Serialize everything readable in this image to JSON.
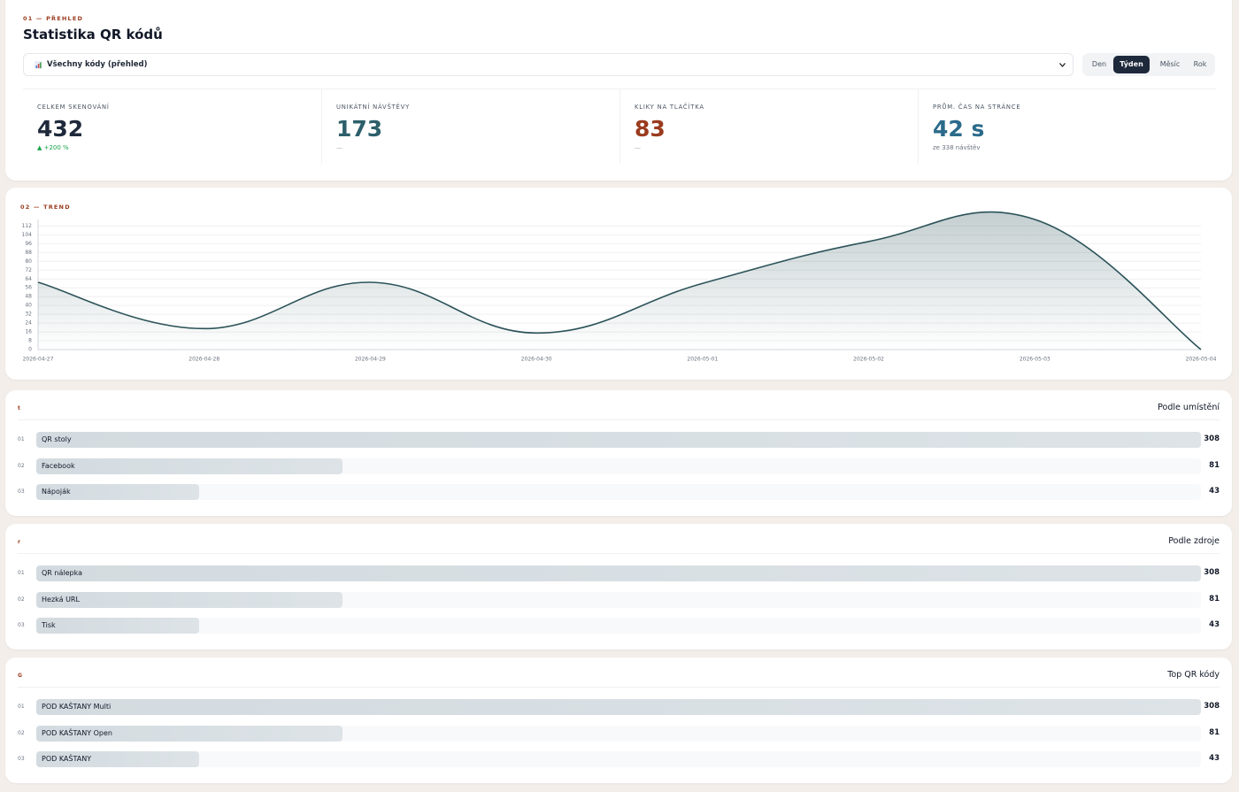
{
  "header": {
    "eyebrow": "01 — PŘEHLED",
    "title": "Statistika QR kódů",
    "select": "Všechny kódy (přehled)",
    "periods": [
      "Den",
      "Týden",
      "Měsíc",
      "Rok"
    ],
    "active_period": 1
  },
  "stats": [
    {
      "label": "CELKEM SKENOVÁNÍ",
      "value": 432,
      "note": "▲ +200 %",
      "color": "#1e293b",
      "note_color": "#16a34a"
    },
    {
      "label": "UNIKÁTNÍ NÁVŠTĚVY",
      "value": 173,
      "note": "—",
      "color": "#2c5f6a",
      "note_color": "#9ca3af"
    },
    {
      "label": "KLIKY NA TLAČÍTKA",
      "value": 83,
      "note": "—",
      "color": "#9a3b1e",
      "note_color": "#9ca3af"
    },
    {
      "label": "PRŮM. ČAS NA STRÁNCE",
      "value": "42 s",
      "note": "ze 338 návštěv",
      "color": "#2a6a8a",
      "note_color": "#6b7280"
    }
  ],
  "chart_data": {
    "type": "line",
    "title": "02 — TREND",
    "categories": [
      "2026-04-27",
      "2026-04-28",
      "2026-04-29",
      "2026-04-30",
      "2026-05-01",
      "2026-05-02",
      "2026-05-03",
      "2026-05-04"
    ],
    "values": [
      61,
      19,
      61,
      15,
      60,
      98,
      118,
      0
    ],
    "color": "#2c5359",
    "ylim": [
      0,
      118
    ],
    "yticks": [
      0,
      8,
      16,
      24,
      32,
      40,
      48,
      56,
      64,
      72,
      80,
      88,
      96,
      104,
      112
    ],
    "grid": true
  },
  "sections": [
    {
      "marker": "t",
      "title": "Podle umístění",
      "rows": [
        {
          "rank": "01",
          "label": "QR stoly",
          "value": 308
        },
        {
          "rank": "02",
          "label": "Facebook",
          "value": 81
        },
        {
          "rank": "03",
          "label": "Nápoják",
          "value": 43
        }
      ]
    },
    {
      "marker": "r",
      "title": "Podle zdroje",
      "rows": [
        {
          "rank": "01",
          "label": "QR nálepka",
          "value": 308
        },
        {
          "rank": "02",
          "label": "Hezká URL",
          "value": 81
        },
        {
          "rank": "03",
          "label": "Tisk",
          "value": 43
        }
      ]
    },
    {
      "marker": "G",
      "title": "Top QR kódy",
      "rows": [
        {
          "rank": "01",
          "label": "POD KAŠTANY Multi",
          "value": 308
        },
        {
          "rank": "02",
          "label": "POD KAŠTANY Open",
          "value": 81
        },
        {
          "rank": "03",
          "label": "POD KAŠTANY",
          "value": 43
        }
      ]
    }
  ]
}
